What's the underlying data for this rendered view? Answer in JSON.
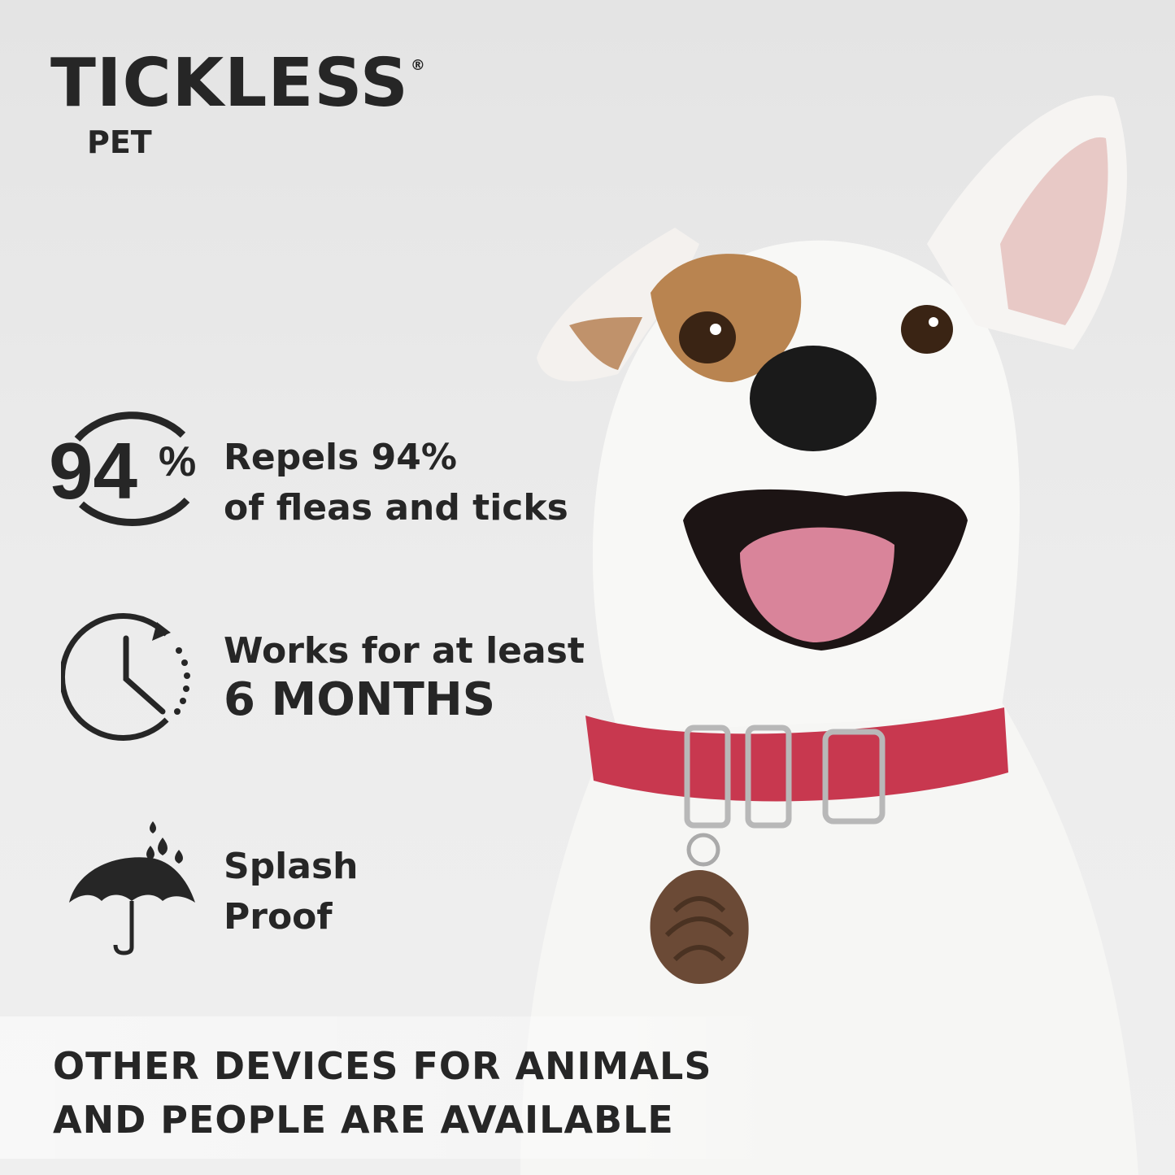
{
  "brand": {
    "name": "TICKLESS",
    "registered": "®",
    "product": "PET"
  },
  "features": [
    {
      "icon": "percent-circle-icon",
      "badge": "94",
      "badge_unit": "%",
      "line1": "Repels 94%",
      "line2": "of fleas and ticks"
    },
    {
      "icon": "clock-cycle-icon",
      "line1": "Works for at least",
      "line2": "6 MONTHS"
    },
    {
      "icon": "umbrella-rain-icon",
      "line1": "Splash",
      "line2": "Proof"
    }
  ],
  "footer": {
    "line1": "OTHER DEVICES FOR ANIMALS",
    "line2": "AND PEOPLE ARE AVAILABLE"
  },
  "colors": {
    "text": "#262626",
    "collar": "#c8384f",
    "tag": "#6b4a36"
  }
}
